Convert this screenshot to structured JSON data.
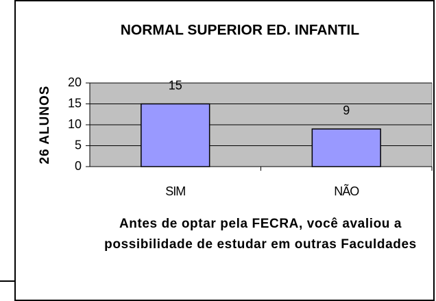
{
  "chart_data": {
    "type": "bar",
    "title": "NORMAL SUPERIOR ED. INFANTIL",
    "ylabel": "26 ALUNOS",
    "xlabel": "Antes de optar pela FECRA, você avaliou a possibilidade de estudar em outras Faculdades",
    "categories": [
      "SIM",
      "NÃO"
    ],
    "values": [
      15,
      9
    ],
    "color": "#9999ff",
    "ylim": [
      0,
      20
    ],
    "yticks": [
      0,
      5,
      10,
      15,
      20
    ],
    "grid": true
  }
}
